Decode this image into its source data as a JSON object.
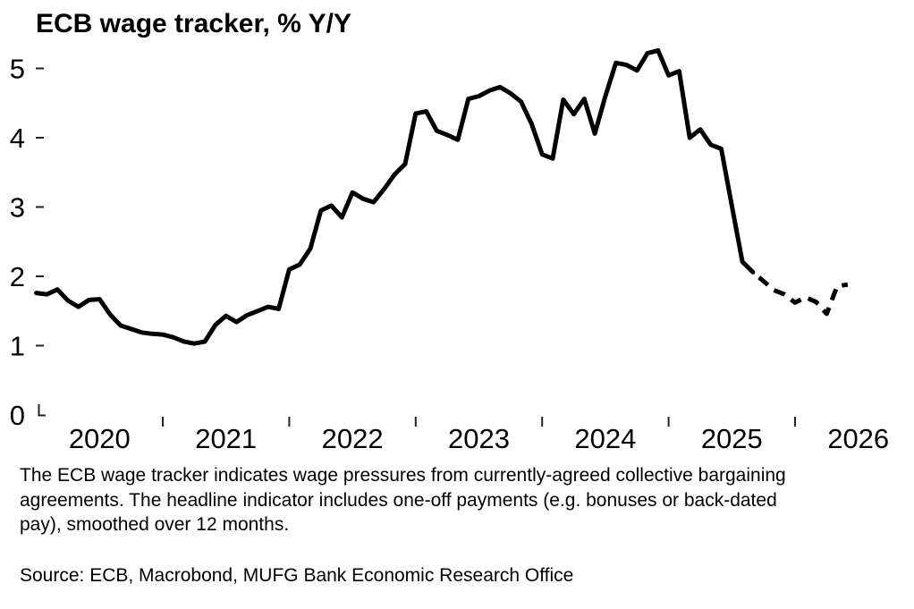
{
  "title": "ECB wage tracker, % Y/Y",
  "chart_data": {
    "type": "line",
    "title": "ECB wage tracker, % Y/Y",
    "ylabel": "% Y/Y",
    "xlabel": "",
    "grid": false,
    "legend": "none",
    "x_start_month": "2020-01",
    "x_end_month": "2026-06",
    "x_frequency": "monthly",
    "ylim": [
      0,
      5.45
    ],
    "y_ticks": [
      0,
      1,
      2,
      3,
      4,
      5
    ],
    "x_tick_years": [
      2021,
      2022,
      2023,
      2024,
      2025,
      2026
    ],
    "x_labels": [
      "2020",
      "2021",
      "2022",
      "2023",
      "2024",
      "2025",
      "2026"
    ],
    "line_color": "#000000",
    "series": [
      {
        "name": "ECB wage tracker, % Y/Y",
        "style_note": "solid for actual data, dashed for forward-looking part from 2025-09",
        "forecast_start_index": 68,
        "values": [
          1.76,
          1.74,
          1.81,
          1.65,
          1.56,
          1.66,
          1.67,
          1.45,
          1.29,
          1.24,
          1.19,
          1.17,
          1.16,
          1.12,
          1.06,
          1.03,
          1.06,
          1.3,
          1.43,
          1.34,
          1.44,
          1.5,
          1.56,
          1.53,
          2.1,
          2.17,
          2.4,
          2.95,
          3.02,
          2.85,
          3.21,
          3.12,
          3.07,
          3.26,
          3.47,
          3.62,
          4.35,
          4.38,
          4.1,
          4.04,
          3.97,
          4.56,
          4.6,
          4.68,
          4.73,
          4.64,
          4.52,
          4.2,
          3.76,
          3.7,
          4.55,
          4.34,
          4.56,
          4.06,
          4.6,
          5.08,
          5.05,
          4.97,
          5.22,
          5.26,
          4.9,
          4.96,
          4.0,
          4.12,
          3.9,
          3.84,
          3.02,
          2.21,
          2.06,
          1.93,
          1.8,
          1.74,
          1.62,
          1.7,
          1.63,
          1.46,
          1.86,
          1.88
        ]
      }
    ]
  },
  "footnote": {
    "lines": [
      "The ECB wage tracker indicates wage pressures from currently-agreed collective bargaining",
      "agreements. The headline indicator includes one-off payments (e.g. bonuses or back-dated",
      "pay), smoothed over 12 months."
    ]
  },
  "source": "Source: ECB, Macrobond, MUFG Bank Economic Research Office"
}
